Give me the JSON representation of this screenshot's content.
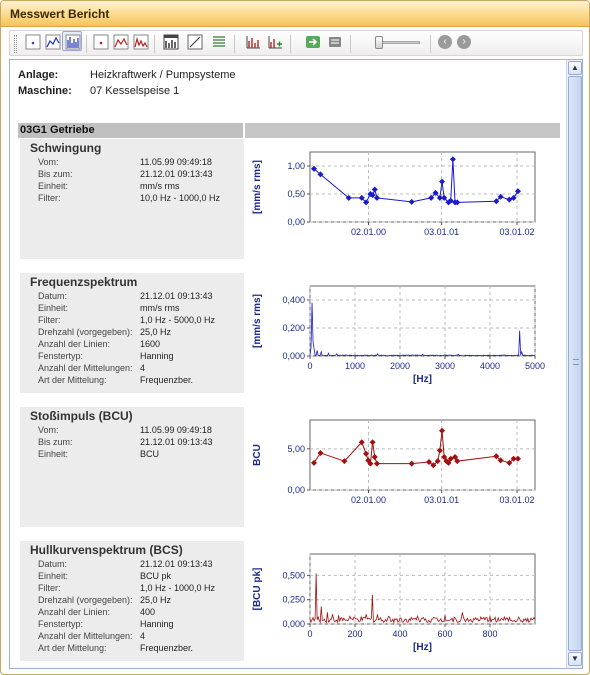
{
  "window": {
    "title": "Messwert Bericht"
  },
  "toolbar": {
    "buttons": [
      "chart-a-icon",
      "chart-b-icon",
      "chart-c-icon",
      "chart-d-icon",
      "chart-e-icon",
      "chart-f-icon",
      "chart-g-icon",
      "chart-h-icon",
      "chart-i-icon",
      "chart-j-icon",
      "refresh-icon",
      "settings-icon"
    ],
    "nav": {
      "back": "‹",
      "forward": "›"
    }
  },
  "plant": {
    "anlage_label": "Anlage:",
    "anlage_value": "Heizkraftwerk / Pumpsysteme",
    "maschine_label": "Maschine:",
    "maschine_value": "07 Kesselspeise 1"
  },
  "section": {
    "title": "03G1 Getriebe"
  },
  "panels": [
    {
      "title": "Schwingung",
      "rows": [
        {
          "label": "Vom:",
          "value": "11.05.99 09:49:18"
        },
        {
          "label": "Bis zum:",
          "value": "21.12.01 09:13:43"
        },
        {
          "label": "Einheit:",
          "value": "mm/s rms"
        },
        {
          "label": "Filter:",
          "value": "10,0 Hz - 1000,0 Hz"
        }
      ]
    },
    {
      "title": "Frequenzspektrum",
      "rows": [
        {
          "label": "Datum:",
          "value": "21.12.01 09:13:43"
        },
        {
          "label": "Einheit:",
          "value": "mm/s rms"
        },
        {
          "label": "Filter:",
          "value": "1,0 Hz - 5000,0 Hz"
        },
        {
          "label": "Drehzahl (vorgegeben):",
          "value": "25,0 Hz"
        },
        {
          "label": "Anzahl der Linien:",
          "value": "1600"
        },
        {
          "label": "Fenstertyp:",
          "value": "Hanning"
        },
        {
          "label": "Anzahl der Mittelungen:",
          "value": "4"
        },
        {
          "label": "Art der Mittelung:",
          "value": "Frequenzber."
        }
      ]
    },
    {
      "title": "Stoßimpuls (BCU)",
      "rows": [
        {
          "label": "Vom:",
          "value": "11.05.99 09:49:18"
        },
        {
          "label": "Bis zum:",
          "value": "21.12.01 09:13:43"
        },
        {
          "label": "Einheit:",
          "value": "BCU"
        }
      ]
    },
    {
      "title": "Hullkurvenspektrum (BCS)",
      "rows": [
        {
          "label": "Datum:",
          "value": "21.12.01 09:13:43"
        },
        {
          "label": "Einheit:",
          "value": "BCU pk"
        },
        {
          "label": "Filter:",
          "value": "1,0 Hz - 1000,0 Hz"
        },
        {
          "label": "Drehzahl (vorgegeben):",
          "value": "25,0 Hz"
        },
        {
          "label": "Anzahl der Linien:",
          "value": "400"
        },
        {
          "label": "Fenstertyp:",
          "value": "Hanning"
        },
        {
          "label": "Anzahl der Mittelungen:",
          "value": "4"
        },
        {
          "label": "Art der Mittelung:",
          "value": "Frequenzber."
        }
      ]
    }
  ],
  "chart_data": [
    {
      "type": "line",
      "ylabel": "[mm/s rms]",
      "xlabel": "",
      "ylim": [
        0,
        1.25
      ],
      "yticks": [
        "0,00",
        "0,50",
        "1,00"
      ],
      "xticks": [
        "02.01.00",
        "03.01.01",
        "03.01.02"
      ],
      "color": "#1a1acc",
      "marker": "diamond",
      "grid": true,
      "series": [
        {
          "x": [
            0.0,
            0.03,
            0.16,
            0.22,
            0.24,
            0.26,
            0.27,
            0.28,
            0.29,
            0.45,
            0.54,
            0.56,
            0.58,
            0.59,
            0.6,
            0.62,
            0.63,
            0.64,
            0.65,
            0.66,
            0.84,
            0.86,
            0.9,
            0.92,
            0.94
          ],
          "y": [
            0.95,
            0.85,
            0.43,
            0.43,
            0.35,
            0.5,
            0.48,
            0.58,
            0.43,
            0.36,
            0.43,
            0.52,
            0.43,
            0.72,
            0.43,
            0.35,
            0.38,
            1.12,
            0.35,
            0.35,
            0.37,
            0.45,
            0.4,
            0.43,
            0.55
          ]
        }
      ]
    },
    {
      "type": "line",
      "ylabel": "[mm/s rms]",
      "xlabel": "[Hz]",
      "ylim": [
        0,
        0.5
      ],
      "yticks": [
        "0,000",
        "0,200",
        "0,400"
      ],
      "xlim": [
        0,
        5000
      ],
      "xticks": [
        "0",
        "1000",
        "2000",
        "3000",
        "4000",
        "5000"
      ],
      "color": "#1a1acc",
      "grid": true,
      "series": [
        {
          "peaks": [
            [
              25,
              0.06
            ],
            [
              50,
              0.38
            ],
            [
              75,
              0.1
            ],
            [
              100,
              0.05
            ],
            [
              150,
              0.04
            ],
            [
              250,
              0.03
            ],
            [
              400,
              0.02
            ],
            [
              600,
              0.015
            ],
            [
              1500,
              0.015
            ],
            [
              2500,
              0.012
            ],
            [
              3300,
              0.012
            ],
            [
              4650,
              0.18
            ],
            [
              4700,
              0.03
            ]
          ],
          "baseline": 0.004
        }
      ]
    },
    {
      "type": "line",
      "ylabel": "BCU",
      "xlabel": "",
      "ylim": [
        0,
        8.5
      ],
      "yticks": [
        "0,00",
        "5,00"
      ],
      "xticks": [
        "02.01.00",
        "03.01.01",
        "03.01.02"
      ],
      "color": "#a01010",
      "marker": "diamond",
      "grid": true,
      "series": [
        {
          "x": [
            0.0,
            0.03,
            0.14,
            0.22,
            0.24,
            0.25,
            0.26,
            0.27,
            0.28,
            0.29,
            0.45,
            0.53,
            0.55,
            0.57,
            0.58,
            0.59,
            0.6,
            0.61,
            0.62,
            0.63,
            0.65,
            0.66,
            0.84,
            0.86,
            0.9,
            0.92,
            0.94
          ],
          "y": [
            3.3,
            4.5,
            3.5,
            5.8,
            4.4,
            3.6,
            3.2,
            5.8,
            4.0,
            3.2,
            3.2,
            3.4,
            3.0,
            3.5,
            4.8,
            7.2,
            4.0,
            3.5,
            3.3,
            3.8,
            4.0,
            3.5,
            4.1,
            3.6,
            3.3,
            3.8,
            3.8
          ]
        }
      ]
    },
    {
      "type": "line",
      "ylabel": "[BCU pk]",
      "xlabel": "[Hz]",
      "ylim": [
        0,
        0.72
      ],
      "yticks": [
        "0,000",
        "0,250",
        "0,500"
      ],
      "xlim": [
        0,
        1000
      ],
      "xticks": [
        "0",
        "200",
        "400",
        "600",
        "800"
      ],
      "color": "#a01010",
      "grid": true,
      "series": [
        {
          "peaks": [
            [
              25,
              0.52
            ],
            [
              50,
              0.18
            ],
            [
              75,
              0.12
            ],
            [
              100,
              0.1
            ],
            [
              125,
              0.09
            ],
            [
              175,
              0.08
            ],
            [
              250,
              0.1
            ],
            [
              275,
              0.3
            ],
            [
              300,
              0.1
            ],
            [
              350,
              0.08
            ],
            [
              400,
              0.06
            ],
            [
              475,
              0.08
            ],
            [
              500,
              0.06
            ],
            [
              550,
              0.07
            ],
            [
              600,
              0.09
            ],
            [
              675,
              0.12
            ],
            [
              700,
              0.06
            ],
            [
              800,
              0.08
            ],
            [
              875,
              0.06
            ],
            [
              950,
              0.05
            ]
          ],
          "baseline": 0.04
        }
      ]
    }
  ]
}
